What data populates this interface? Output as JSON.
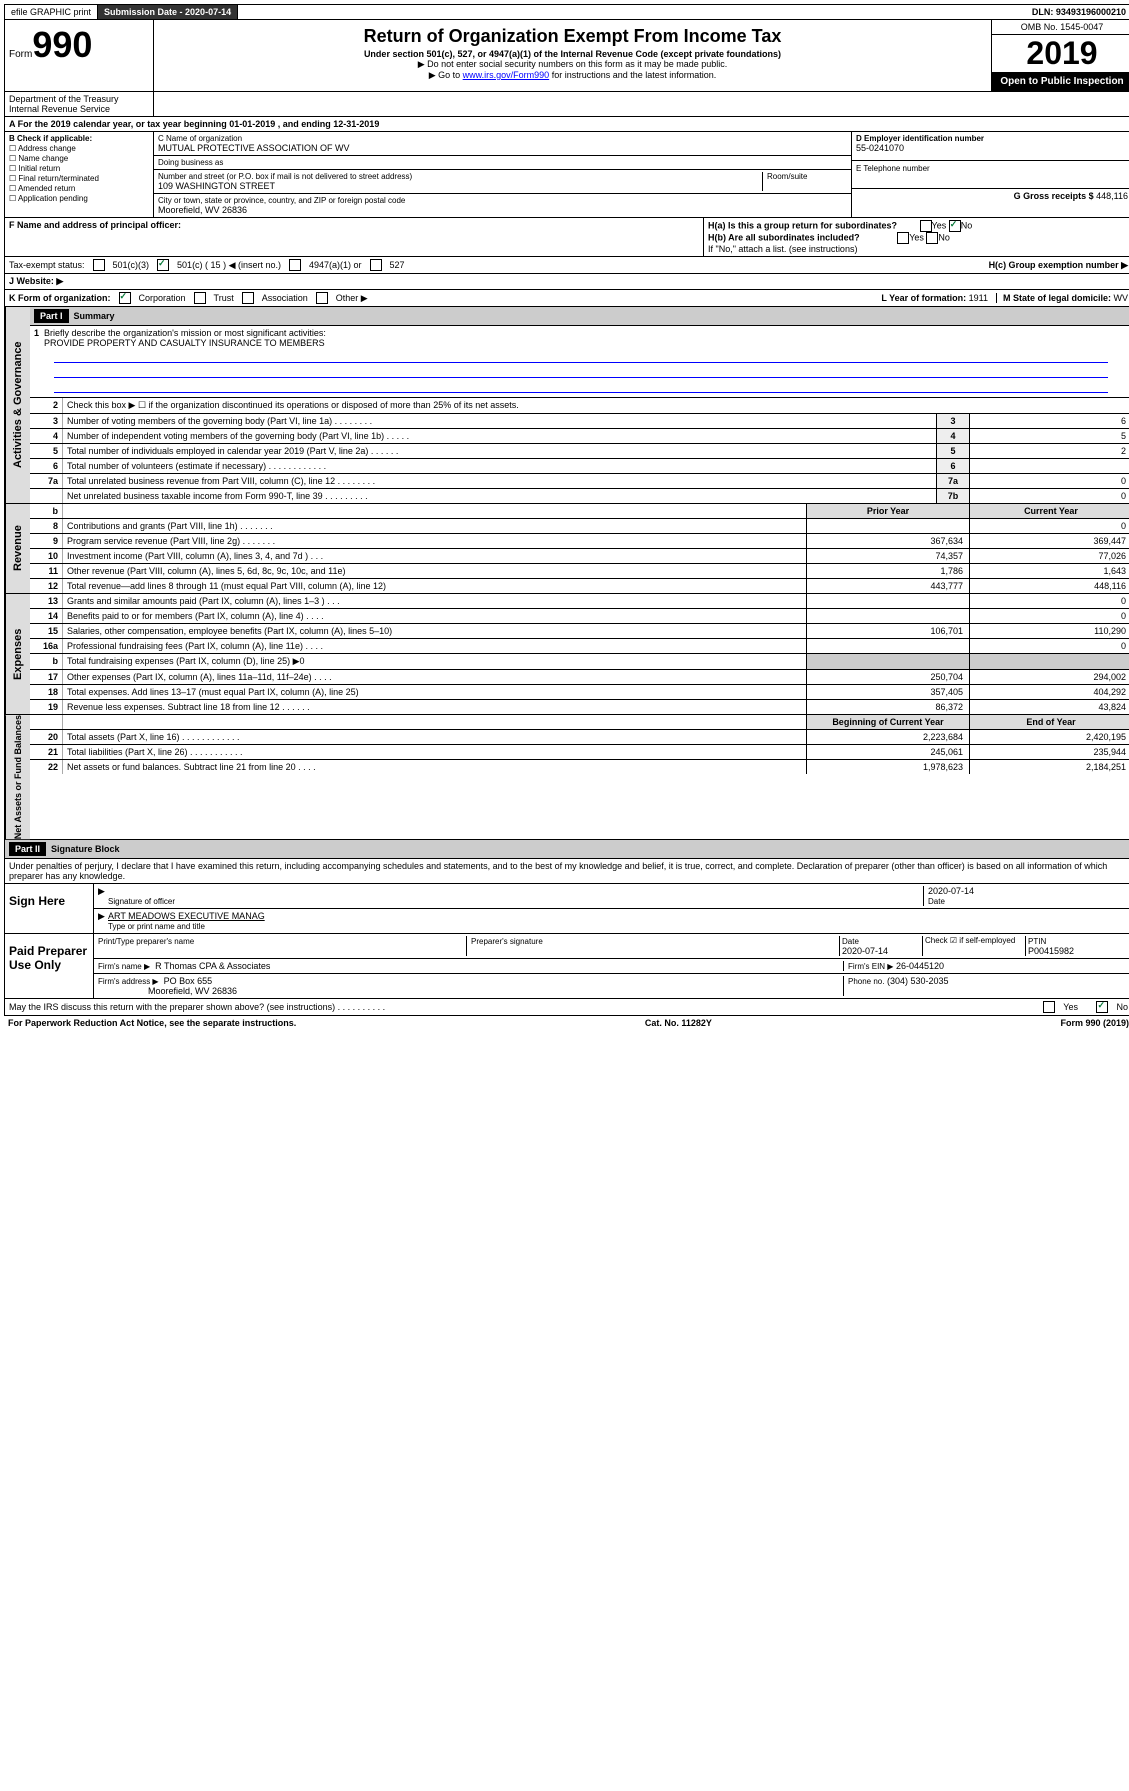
{
  "top": {
    "efile": "efile GRAPHIC print",
    "submission_label": "Submission Date - 2020-07-14",
    "dln": "DLN: 93493196000210"
  },
  "header": {
    "form_word": "Form",
    "form_num": "990",
    "title": "Return of Organization Exempt From Income Tax",
    "sub1": "Under section 501(c), 527, or 4947(a)(1) of the Internal Revenue Code (except private foundations)",
    "sub2": "▶ Do not enter social security numbers on this form as it may be made public.",
    "sub3a": "▶ Go to ",
    "sub3_link": "www.irs.gov/Form990",
    "sub3b": " for instructions and the latest information.",
    "omb": "OMB No. 1545-0047",
    "year": "2019",
    "open": "Open to Public Inspection",
    "dept": "Department of the Treasury Internal Revenue Service"
  },
  "period": "A For the 2019 calendar year, or tax year beginning 01-01-2019    , and ending 12-31-2019",
  "boxB": {
    "label": "B Check if applicable:",
    "items": [
      "Address change",
      "Name change",
      "Initial return",
      "Final return/terminated",
      "Amended return",
      "Application pending"
    ]
  },
  "boxC": {
    "name_label": "C Name of organization",
    "org": "MUTUAL PROTECTIVE ASSOCIATION OF WV",
    "dba": "Doing business as",
    "street_label": "Number and street (or P.O. box if mail is not delivered to street address)",
    "room": "Room/suite",
    "street": "109 WASHINGTON STREET",
    "city_label": "City or town, state or province, country, and ZIP or foreign postal code",
    "city": "Moorefield, WV  26836"
  },
  "boxD": {
    "label": "D Employer identification number",
    "val": "55-0241070"
  },
  "boxE": {
    "label": "E Telephone number"
  },
  "boxG": {
    "label": "G Gross receipts $",
    "val": "448,116"
  },
  "boxF": "F  Name and address of principal officer:",
  "boxH": {
    "ha": "H(a)  Is this a group return for subordinates?",
    "hb": "H(b)  Are all subordinates included?",
    "hb_note": "If \"No,\" attach a list. (see instructions)",
    "hc": "H(c)  Group exemption number ▶",
    "yes": "Yes",
    "no": "No"
  },
  "taxStatus": {
    "label": "Tax-exempt status:",
    "c3": "501(c)(3)",
    "c_other": "501(c) ( 15 ) ◀ (insert no.)",
    "a1": "4947(a)(1) or",
    "s527": "527"
  },
  "websiteJ": "J   Website: ▶",
  "rowK": {
    "label": "K Form of organization:",
    "corp": "Corporation",
    "trust": "Trust",
    "assoc": "Association",
    "other": "Other ▶"
  },
  "rowL": {
    "label": "L Year of formation:",
    "val": "1911"
  },
  "rowM": {
    "label": "M State of legal domicile:",
    "val": "WV"
  },
  "part1": "Part I",
  "summary": "Summary",
  "line1": {
    "num": "1",
    "text": "Briefly describe the organization's mission or most significant activities:",
    "mission": "PROVIDE PROPERTY AND CASUALTY INSURANCE TO MEMBERS"
  },
  "lines": [
    {
      "n": "2",
      "t": "Check this box ▶ ☐  if the organization discontinued its operations or disposed of more than 25% of its net assets."
    },
    {
      "n": "3",
      "t": "Number of voting members of the governing body (Part VI, line 1a)   .    .    .    .    .    .    .    .",
      "c": "3",
      "v": "6"
    },
    {
      "n": "4",
      "t": "Number of independent voting members of the governing body (Part VI, line 1b)   .    .    .    .    .",
      "c": "4",
      "v": "5"
    },
    {
      "n": "5",
      "t": "Total number of individuals employed in calendar year 2019 (Part V, line 2a)    .    .    .    .    .    .",
      "c": "5",
      "v": "2"
    },
    {
      "n": "6",
      "t": "Total number of volunteers (estimate if necessary)    .    .    .    .    .    .    .    .    .    .    .    .",
      "c": "6",
      "v": ""
    },
    {
      "n": "7a",
      "t": "Total unrelated business revenue from Part VIII, column (C), line 12   .    .    .    .    .    .    .    .",
      "c": "7a",
      "v": "0"
    },
    {
      "n": "",
      "t": "Net unrelated business taxable income from Form 990-T, line 39    .    .    .    .    .    .    .    .    .",
      "c": "7b",
      "v": "0"
    }
  ],
  "yearHdr": {
    "b": "b",
    "prior": "Prior Year",
    "current": "Current Year"
  },
  "revenue": [
    {
      "n": "8",
      "t": "Contributions and grants (Part VIII, line 1h)    .    .    .    .    .    .    .",
      "p": "",
      "c": "0"
    },
    {
      "n": "9",
      "t": "Program service revenue (Part VIII, line 2g)    .    .    .    .    .    .    .",
      "p": "367,634",
      "c": "369,447"
    },
    {
      "n": "10",
      "t": "Investment income (Part VIII, column (A), lines 3, 4, and 7d )    .    .    .",
      "p": "74,357",
      "c": "77,026"
    },
    {
      "n": "11",
      "t": "Other revenue (Part VIII, column (A), lines 5, 6d, 8c, 9c, 10c, and 11e)",
      "p": "1,786",
      "c": "1,643"
    },
    {
      "n": "12",
      "t": "Total revenue—add lines 8 through 11 (must equal Part VIII, column (A), line 12)",
      "p": "443,777",
      "c": "448,116"
    }
  ],
  "expenses": [
    {
      "n": "13",
      "t": "Grants and similar amounts paid (Part IX, column (A), lines 1–3 )    .    .    .",
      "p": "",
      "c": "0"
    },
    {
      "n": "14",
      "t": "Benefits paid to or for members (Part IX, column (A), line 4)    .    .    .    .",
      "p": "",
      "c": "0"
    },
    {
      "n": "15",
      "t": "Salaries, other compensation, employee benefits (Part IX, column (A), lines 5–10)",
      "p": "106,701",
      "c": "110,290"
    },
    {
      "n": "16a",
      "t": "Professional fundraising fees (Part IX, column (A), line 11e)    .    .    .    .",
      "p": "",
      "c": "0"
    },
    {
      "n": "b",
      "t": "Total fundraising expenses (Part IX, column (D), line 25) ▶0",
      "p": null,
      "c": null
    },
    {
      "n": "17",
      "t": "Other expenses (Part IX, column (A), lines 11a–11d, 11f–24e)    .    .    .    .",
      "p": "250,704",
      "c": "294,002"
    },
    {
      "n": "18",
      "t": "Total expenses. Add lines 13–17 (must equal Part IX, column (A), line 25)",
      "p": "357,405",
      "c": "404,292"
    },
    {
      "n": "19",
      "t": "Revenue less expenses. Subtract line 18 from line 12   .    .    .    .    .    .",
      "p": "86,372",
      "c": "43,824"
    }
  ],
  "netHdr": {
    "prior": "Beginning of Current Year",
    "current": "End of Year"
  },
  "net": [
    {
      "n": "20",
      "t": "Total assets (Part X, line 16)    .    .    .    .    .    .    .    .    .    .    .    .",
      "p": "2,223,684",
      "c": "2,420,195"
    },
    {
      "n": "21",
      "t": "Total liabilities (Part X, line 26)    .    .    .    .    .    .    .    .    .    .    .",
      "p": "245,061",
      "c": "235,944"
    },
    {
      "n": "22",
      "t": "Net assets or fund balances. Subtract line 21 from line 20    .    .    .    .",
      "p": "1,978,623",
      "c": "2,184,251"
    }
  ],
  "sideLabels": {
    "gov": "Activities & Governance",
    "rev": "Revenue",
    "exp": "Expenses",
    "net": "Net Assets or Fund Balances"
  },
  "part2": "Part II",
  "sigBlock": "Signature Block",
  "perjury": "Under penalties of perjury, I declare that I have examined this return, including accompanying schedules and statements, and to the best of my knowledge and belief, it is true, correct, and complete. Declaration of preparer (other than officer) is based on all information of which preparer has any knowledge.",
  "signHere": "Sign Here",
  "sigOfficer": "Signature of officer",
  "sigDate": "2020-07-14",
  "sigDateLabel": "Date",
  "sigName": "ART MEADOWS  EXECUTIVE MANAG",
  "sigNameLabel": "Type or print name and title",
  "paid": "Paid Preparer Use Only",
  "prep": {
    "name_label": "Print/Type preparer's name",
    "sig_label": "Preparer's signature",
    "date_label": "Date",
    "date": "2020-07-14",
    "check_label": "Check ☑ if self-employed",
    "ptin_label": "PTIN",
    "ptin": "P00415982",
    "firm_name_label": "Firm's name    ▶",
    "firm_name": "R Thomas CPA & Associates",
    "firm_ein_label": "Firm's EIN ▶",
    "firm_ein": "26-0445120",
    "firm_addr_label": "Firm's address ▶",
    "firm_addr1": "PO Box 655",
    "firm_addr2": "Moorefield, WV  26836",
    "phone_label": "Phone no.",
    "phone": "(304) 530-2035"
  },
  "discuss": "May the IRS discuss this return with the preparer shown above? (see instructions)    .    .    .    .    .    .    .    .    .    .",
  "footer": {
    "left": "For Paperwork Reduction Act Notice, see the separate instructions.",
    "mid": "Cat. No. 11282Y",
    "right": "Form 990 (2019)"
  }
}
